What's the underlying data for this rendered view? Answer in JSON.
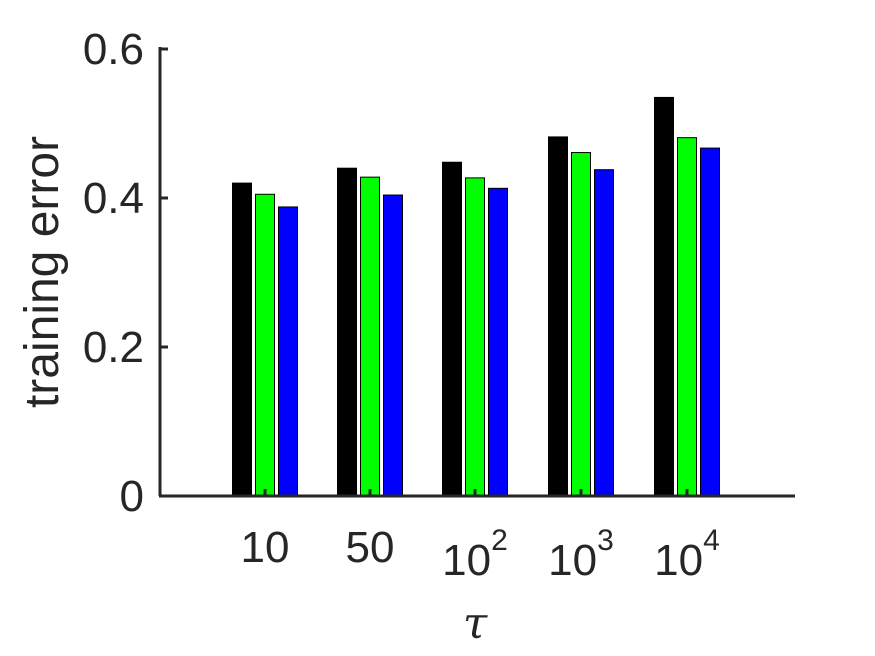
{
  "chart_data": {
    "type": "bar",
    "categories": [
      {
        "base": "10",
        "exp": ""
      },
      {
        "base": "50",
        "exp": ""
      },
      {
        "base": "10",
        "exp": "2"
      },
      {
        "base": "10",
        "exp": "3"
      },
      {
        "base": "10",
        "exp": "4"
      }
    ],
    "series": [
      {
        "color": "#000000",
        "values": [
          0.42,
          0.44,
          0.448,
          0.482,
          0.535
        ]
      },
      {
        "color": "#00ff00",
        "values": [
          0.405,
          0.428,
          0.427,
          0.461,
          0.481
        ]
      },
      {
        "color": "#0000ff",
        "values": [
          0.388,
          0.404,
          0.413,
          0.438,
          0.467
        ]
      }
    ],
    "yticks": [
      "0",
      "0.2",
      "0.4",
      "0.6"
    ],
    "ylim": [
      0,
      0.6
    ],
    "ylabel": "training error",
    "xlabel": "τ",
    "grid": false,
    "legend": "none"
  }
}
